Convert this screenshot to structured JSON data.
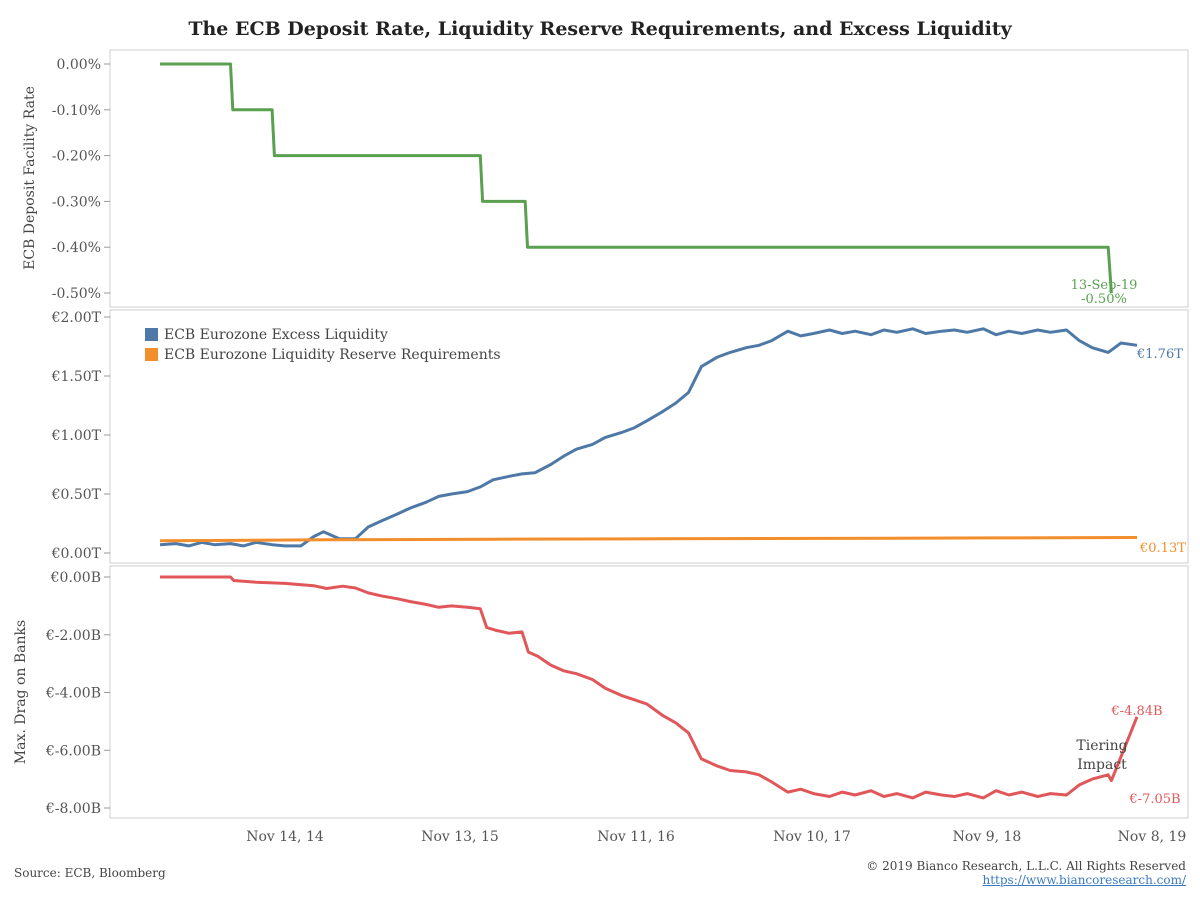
{
  "title": "The ECB Deposit Rate, Liquidity Reserve Requirements, and Excess Liquidity",
  "source": "Source: ECB, Bloomberg",
  "copyright": "© 2019 Bianco Research, L.L.C. All Rights Reserved",
  "website": "https://www.biancoresearch.com/",
  "colors": {
    "rate": "#59a14f",
    "excess": "#4e79a7",
    "reserve": "#f28e2b",
    "drag": "#e15759"
  },
  "x_ticks": [
    "Nov 14, 14",
    "Nov 13, 15",
    "Nov 11, 16",
    "Nov 10, 17",
    "Nov 9, 18",
    "Nov 8, 19"
  ],
  "chart_data": [
    {
      "type": "line",
      "ylabel": "ECB Deposit Facility Rate",
      "ylim": [
        -0.5,
        0.0
      ],
      "y_ticks": [
        "0.00%",
        "-0.10%",
        "-0.20%",
        "-0.30%",
        "-0.40%",
        "-0.50%"
      ],
      "x_range": [
        "2014-01-03",
        "2019-11-08"
      ],
      "series": [
        {
          "values": [
            [
              "2014-01-03",
              0.0
            ],
            [
              "2014-06-06",
              0.0
            ],
            [
              "2014-06-11",
              -0.1
            ],
            [
              "2014-09-05",
              -0.1
            ],
            [
              "2014-09-10",
              -0.2
            ],
            [
              "2015-12-04",
              -0.2
            ],
            [
              "2015-12-09",
              -0.3
            ],
            [
              "2016-03-11",
              -0.3
            ],
            [
              "2016-03-16",
              -0.4
            ],
            [
              "2019-09-06",
              -0.4
            ],
            [
              "2019-09-13",
              -0.5
            ]
          ]
        }
      ],
      "annotations": [
        {
          "date": "13-Sep-19",
          "value": "-0.50%"
        }
      ]
    },
    {
      "type": "line",
      "ylim": [
        0.0,
        2.0
      ],
      "y_ticks": [
        "€2.00T",
        "€1.50T",
        "€1.00T",
        "€0.50T",
        "€0.00T"
      ],
      "legend": [
        "ECB Eurozone Excess Liquidity",
        "ECB Eurozone Liquidity Reserve Requirements"
      ],
      "legend_position": "top-left",
      "series": [
        {
          "name": "ECB Eurozone Excess Liquidity",
          "end_label": "€1.76T",
          "values": [
            [
              "2014-01-03",
              0.07
            ],
            [
              "2014-02-07",
              0.08
            ],
            [
              "2014-03-07",
              0.06
            ],
            [
              "2014-04-04",
              0.09
            ],
            [
              "2014-05-02",
              0.07
            ],
            [
              "2014-06-06",
              0.08
            ],
            [
              "2014-07-04",
              0.06
            ],
            [
              "2014-08-01",
              0.09
            ],
            [
              "2014-09-05",
              0.07
            ],
            [
              "2014-10-03",
              0.06
            ],
            [
              "2014-11-07",
              0.06
            ],
            [
              "2014-12-05",
              0.14
            ],
            [
              "2014-12-26",
              0.18
            ],
            [
              "2015-01-30",
              0.12
            ],
            [
              "2015-03-06",
              0.12
            ],
            [
              "2015-04-03",
              0.22
            ],
            [
              "2015-05-01",
              0.27
            ],
            [
              "2015-06-05",
              0.33
            ],
            [
              "2015-07-03",
              0.38
            ],
            [
              "2015-08-07",
              0.43
            ],
            [
              "2015-09-04",
              0.48
            ],
            [
              "2015-10-02",
              0.5
            ],
            [
              "2015-11-06",
              0.52
            ],
            [
              "2015-12-04",
              0.56
            ],
            [
              "2016-01-01",
              0.62
            ],
            [
              "2016-02-05",
              0.65
            ],
            [
              "2016-03-04",
              0.67
            ],
            [
              "2016-04-01",
              0.68
            ],
            [
              "2016-05-06",
              0.75
            ],
            [
              "2016-06-03",
              0.82
            ],
            [
              "2016-07-01",
              0.88
            ],
            [
              "2016-08-05",
              0.92
            ],
            [
              "2016-09-02",
              0.98
            ],
            [
              "2016-10-07",
              1.02
            ],
            [
              "2016-11-04",
              1.06
            ],
            [
              "2016-12-02",
              1.12
            ],
            [
              "2017-01-06",
              1.2
            ],
            [
              "2017-02-03",
              1.27
            ],
            [
              "2017-03-03",
              1.36
            ],
            [
              "2017-03-31",
              1.58
            ],
            [
              "2017-05-05",
              1.66
            ],
            [
              "2017-06-02",
              1.7
            ],
            [
              "2017-07-07",
              1.74
            ],
            [
              "2017-08-04",
              1.76
            ],
            [
              "2017-09-01",
              1.8
            ],
            [
              "2017-10-06",
              1.88
            ],
            [
              "2017-11-03",
              1.84
            ],
            [
              "2017-12-01",
              1.86
            ],
            [
              "2018-01-05",
              1.89
            ],
            [
              "2018-02-02",
              1.86
            ],
            [
              "2018-03-02",
              1.88
            ],
            [
              "2018-04-06",
              1.85
            ],
            [
              "2018-05-04",
              1.89
            ],
            [
              "2018-06-01",
              1.87
            ],
            [
              "2018-07-06",
              1.9
            ],
            [
              "2018-08-03",
              1.86
            ],
            [
              "2018-09-07",
              1.88
            ],
            [
              "2018-10-05",
              1.89
            ],
            [
              "2018-11-02",
              1.87
            ],
            [
              "2018-12-07",
              1.9
            ],
            [
              "2019-01-04",
              1.85
            ],
            [
              "2019-02-01",
              1.88
            ],
            [
              "2019-03-01",
              1.86
            ],
            [
              "2019-04-05",
              1.89
            ],
            [
              "2019-05-03",
              1.87
            ],
            [
              "2019-06-07",
              1.89
            ],
            [
              "2019-07-05",
              1.8
            ],
            [
              "2019-08-02",
              1.74
            ],
            [
              "2019-09-06",
              1.7
            ],
            [
              "2019-10-04",
              1.78
            ],
            [
              "2019-11-08",
              1.76
            ]
          ]
        },
        {
          "name": "ECB Eurozone Liquidity Reserve Requirements",
          "end_label": "€0.13T",
          "values": [
            [
              "2014-01-03",
              0.103
            ],
            [
              "2015-01-02",
              0.112
            ],
            [
              "2016-01-01",
              0.117
            ],
            [
              "2017-01-06",
              0.12
            ],
            [
              "2018-01-05",
              0.124
            ],
            [
              "2019-01-04",
              0.128
            ],
            [
              "2019-11-08",
              0.131
            ]
          ]
        }
      ]
    },
    {
      "type": "line",
      "ylabel": "Max. Drag on Banks",
      "ylim": [
        -8.0,
        0.0
      ],
      "y_ticks": [
        "€0.00B",
        "€-2.00B",
        "€-4.00B",
        "€-6.00B",
        "€-8.00B"
      ],
      "series": [
        {
          "end_labels": [
            "€-4.84B",
            "€-7.05B"
          ],
          "values": [
            [
              "2014-01-03",
              0.0
            ],
            [
              "2014-06-06",
              0.0
            ],
            [
              "2014-06-13",
              -0.12
            ],
            [
              "2014-08-01",
              -0.18
            ],
            [
              "2014-10-03",
              -0.22
            ],
            [
              "2014-12-05",
              -0.3
            ],
            [
              "2015-01-02",
              -0.4
            ],
            [
              "2015-02-06",
              -0.32
            ],
            [
              "2015-03-06",
              -0.38
            ],
            [
              "2015-04-03",
              -0.55
            ],
            [
              "2015-05-01",
              -0.65
            ],
            [
              "2015-06-05",
              -0.75
            ],
            [
              "2015-07-03",
              -0.85
            ],
            [
              "2015-08-07",
              -0.95
            ],
            [
              "2015-09-04",
              -1.05
            ],
            [
              "2015-10-02",
              -1.0
            ],
            [
              "2015-11-06",
              -1.05
            ],
            [
              "2015-12-04",
              -1.1
            ],
            [
              "2015-12-18",
              -1.75
            ],
            [
              "2016-01-08",
              -1.85
            ],
            [
              "2016-02-05",
              -1.95
            ],
            [
              "2016-03-04",
              -1.9
            ],
            [
              "2016-03-18",
              -2.6
            ],
            [
              "2016-04-08",
              -2.75
            ],
            [
              "2016-05-06",
              -3.05
            ],
            [
              "2016-06-03",
              -3.25
            ],
            [
              "2016-07-01",
              -3.35
            ],
            [
              "2016-08-05",
              -3.55
            ],
            [
              "2016-09-02",
              -3.85
            ],
            [
              "2016-10-07",
              -4.1
            ],
            [
              "2016-11-04",
              -4.25
            ],
            [
              "2016-12-02",
              -4.4
            ],
            [
              "2017-01-06",
              -4.8
            ],
            [
              "2017-02-03",
              -5.05
            ],
            [
              "2017-03-03",
              -5.4
            ],
            [
              "2017-03-31",
              -6.3
            ],
            [
              "2017-05-05",
              -6.55
            ],
            [
              "2017-06-02",
              -6.7
            ],
            [
              "2017-07-07",
              -6.75
            ],
            [
              "2017-08-04",
              -6.85
            ],
            [
              "2017-09-01",
              -7.1
            ],
            [
              "2017-10-06",
              -7.45
            ],
            [
              "2017-11-03",
              -7.35
            ],
            [
              "2017-12-01",
              -7.5
            ],
            [
              "2018-01-05",
              -7.6
            ],
            [
              "2018-02-02",
              -7.45
            ],
            [
              "2018-03-02",
              -7.55
            ],
            [
              "2018-04-06",
              -7.4
            ],
            [
              "2018-05-04",
              -7.6
            ],
            [
              "2018-06-01",
              -7.5
            ],
            [
              "2018-07-06",
              -7.65
            ],
            [
              "2018-08-03",
              -7.45
            ],
            [
              "2018-09-07",
              -7.55
            ],
            [
              "2018-10-05",
              -7.6
            ],
            [
              "2018-11-02",
              -7.5
            ],
            [
              "2018-12-07",
              -7.65
            ],
            [
              "2019-01-04",
              -7.4
            ],
            [
              "2019-02-01",
              -7.55
            ],
            [
              "2019-03-01",
              -7.45
            ],
            [
              "2019-04-05",
              -7.6
            ],
            [
              "2019-05-03",
              -7.5
            ],
            [
              "2019-06-07",
              -7.55
            ],
            [
              "2019-07-05",
              -7.2
            ],
            [
              "2019-08-02",
              -7.0
            ],
            [
              "2019-09-06",
              -6.85
            ],
            [
              "2019-09-13",
              -7.05
            ],
            [
              "2019-11-08",
              -4.84
            ]
          ]
        }
      ],
      "annotation_text": [
        "Tiering",
        "Impact"
      ]
    }
  ]
}
